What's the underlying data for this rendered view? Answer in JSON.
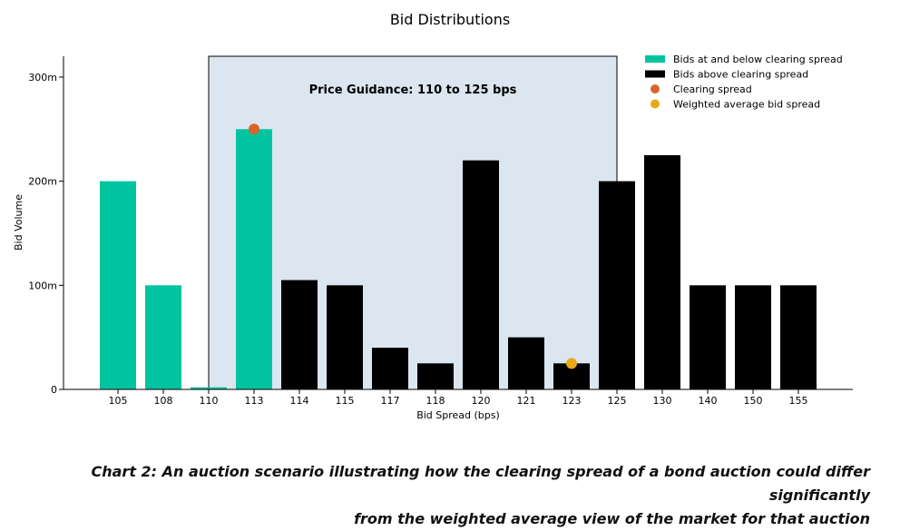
{
  "chart_data": {
    "type": "bar",
    "title": "Bid Distributions",
    "xlabel": "Bid Spread (bps)",
    "ylabel": "Bid Volume",
    "categories": [
      "105",
      "108",
      "110",
      "113",
      "114",
      "115",
      "117",
      "118",
      "120",
      "121",
      "123",
      "125",
      "130",
      "140",
      "150",
      "155"
    ],
    "values": [
      200,
      100,
      2,
      250,
      105,
      100,
      40,
      25,
      220,
      50,
      25,
      200,
      225,
      100,
      100,
      100
    ],
    "groups": [
      "at_below",
      "at_below",
      "at_below",
      "at_below",
      "above",
      "above",
      "above",
      "above",
      "above",
      "above",
      "above",
      "above",
      "above",
      "above",
      "above",
      "above"
    ],
    "series": [
      {
        "name": "Bids at and below clearing spread",
        "color": "#00c4a0"
      },
      {
        "name": "Bids above clearing spread",
        "color": "#000000"
      }
    ],
    "markers": [
      {
        "name": "Clearing spread",
        "category": "113",
        "value": 250,
        "color": "#d9652b"
      },
      {
        "name": "Weighted average bid spread",
        "category": "123",
        "value": 25,
        "color": "#e8a817"
      }
    ],
    "ylim": [
      0,
      320
    ],
    "yticks": [
      0,
      100,
      200,
      300
    ],
    "ytick_labels": [
      "0",
      "100m",
      "200m",
      "300m"
    ],
    "shaded_region": {
      "from_category": "110",
      "to_category": "125",
      "label": "Price Guidance: 110 to 125 bps",
      "color": "#dce6f0"
    },
    "legend_position": "top-right",
    "grid": false
  },
  "caption": {
    "line1": "Chart 2: An auction scenario illustrating how the clearing spread of a bond auction could differ significantly",
    "line2": "from the weighted average view of the market for that auction"
  }
}
